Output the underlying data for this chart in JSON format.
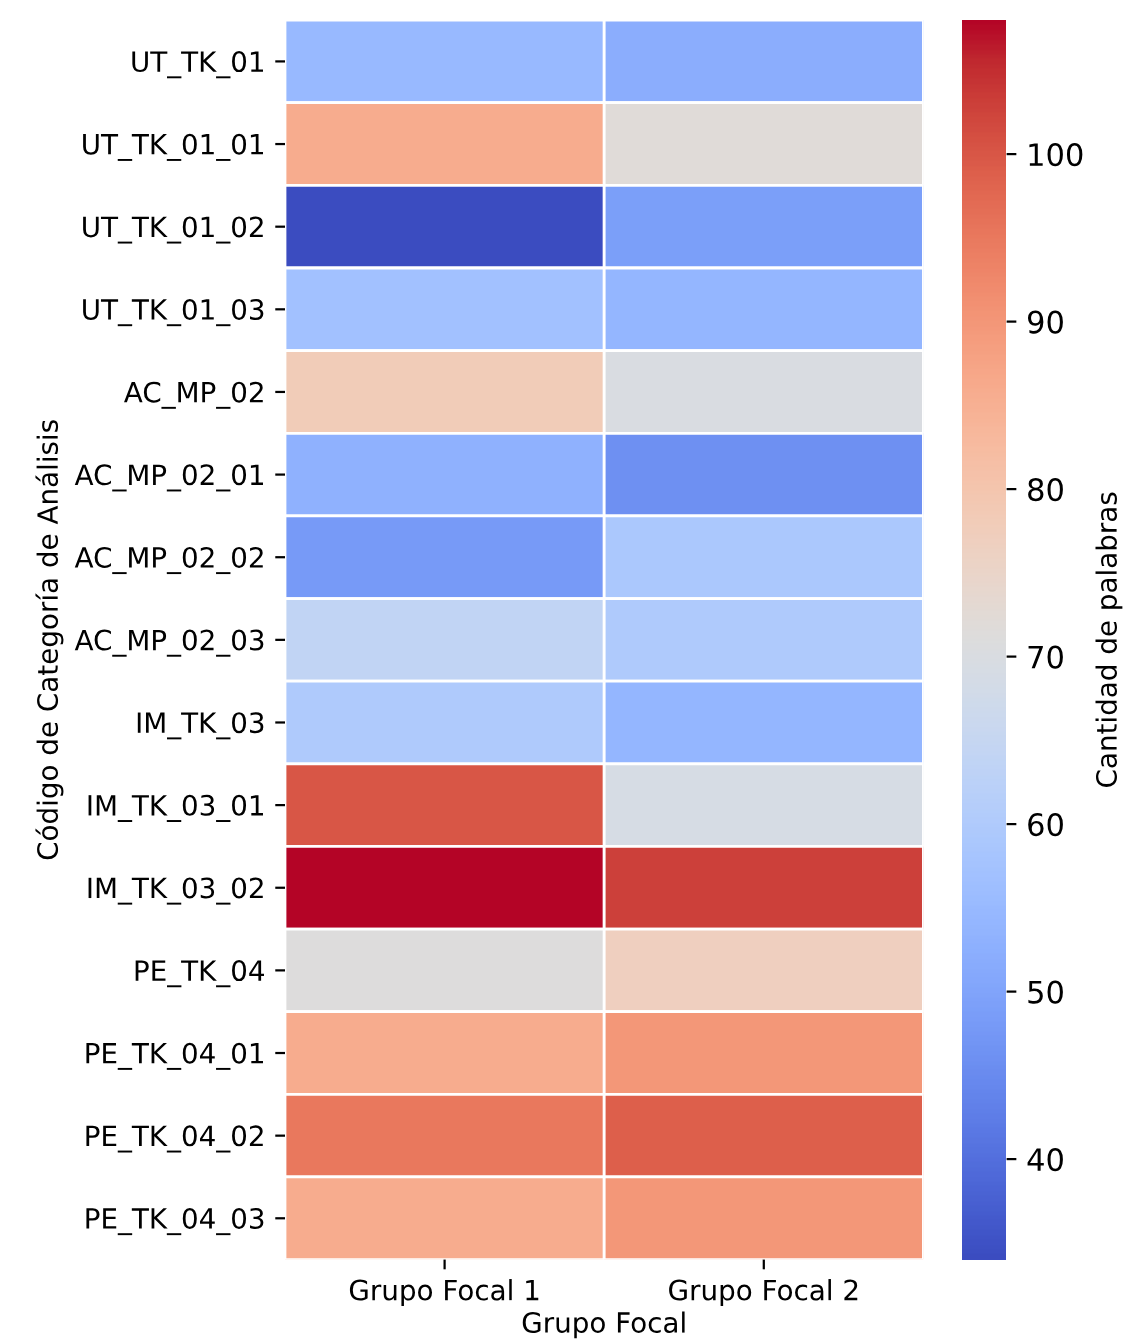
{
  "chart_data": {
    "type": "heatmap",
    "xlabel": "Grupo Focal",
    "ylabel": "Código de Categoría de Análisis",
    "clabel": "Cantidad de palabras",
    "categories": [
      "Grupo Focal 1",
      "Grupo Focal 2"
    ],
    "y_categories": [
      "UT_TK_01",
      "UT_TK_01_01",
      "UT_TK_01_02",
      "UT_TK_01_03",
      "AC_MP_02",
      "AC_MP_02_01",
      "AC_MP_02_02",
      "AC_MP_02_03",
      "IM_TK_03",
      "IM_TK_03_01",
      "IM_TK_03_02",
      "PE_TK_04",
      "PE_TK_04_01",
      "PE_TK_04_02",
      "PE_TK_04_03"
    ],
    "cells": [
      [
        55,
        52
      ],
      [
        86,
        72
      ],
      [
        34,
        49
      ],
      [
        57,
        54
      ],
      [
        78,
        70
      ],
      [
        53,
        46
      ],
      [
        48,
        59
      ],
      [
        64,
        60
      ],
      [
        60,
        54
      ],
      [
        100,
        69
      ],
      [
        108,
        103
      ],
      [
        71,
        77
      ],
      [
        86,
        90
      ],
      [
        95,
        99
      ],
      [
        86,
        90
      ]
    ],
    "clim": [
      34,
      108
    ],
    "cticks": [
      40,
      50,
      60,
      70,
      80,
      90,
      100
    ]
  }
}
